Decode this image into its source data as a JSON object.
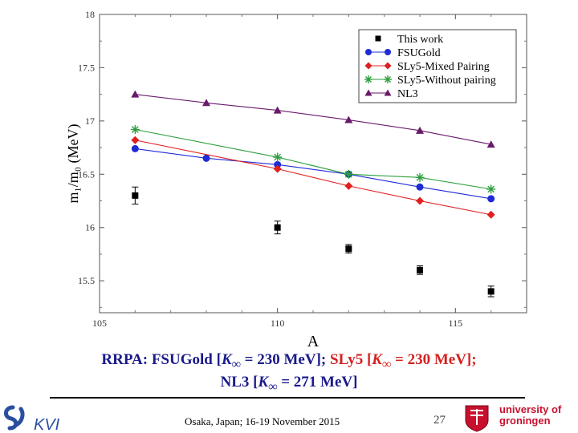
{
  "chart_data": {
    "type": "scatter",
    "xlabel": "A",
    "ylabel": "m₁/m₀ (MeV)",
    "xlim": [
      105,
      117
    ],
    "ylim": [
      15.2,
      18
    ],
    "x_ticks": [
      "105",
      "110",
      "115"
    ],
    "y_ticks": [
      "15.5",
      "16",
      "16.5",
      "17",
      "17.5",
      "18"
    ],
    "legend_position": "top-right",
    "series": [
      {
        "name": "This work",
        "style": "square-errorbar",
        "color": "#000000",
        "x": [
          106,
          110,
          112,
          114,
          116
        ],
        "y": [
          16.3,
          16.0,
          15.8,
          15.6,
          15.4
        ],
        "err": [
          0.08,
          0.06,
          0.04,
          0.04,
          0.05
        ]
      },
      {
        "name": "FSUGold",
        "style": "circle-line",
        "color": "#1f2bd6",
        "x": [
          106,
          108,
          110,
          112,
          114,
          116
        ],
        "y": [
          16.74,
          16.65,
          16.59,
          16.5,
          16.38,
          16.27
        ]
      },
      {
        "name": "SLy5-Mixed Pairing",
        "style": "diamond-line",
        "color": "#e02020",
        "x": [
          106,
          110,
          112,
          114,
          116
        ],
        "y": [
          16.82,
          16.55,
          16.39,
          16.25,
          16.12
        ]
      },
      {
        "name": "SLy5-Without pairing",
        "style": "star-line",
        "color": "#2e9e3e",
        "x": [
          106,
          110,
          112,
          114,
          116
        ],
        "y": [
          16.92,
          16.66,
          16.5,
          16.47,
          16.36
        ]
      },
      {
        "name": "NL3",
        "style": "triangle-line",
        "color": "#6a1a6a",
        "x": [
          106,
          108,
          110,
          112,
          114,
          116
        ],
        "y": [
          17.25,
          17.17,
          17.1,
          17.01,
          16.91,
          16.78
        ]
      }
    ]
  },
  "caption": {
    "line1_part1": "RRPA: FSUGold [",
    "k_symbol": "K",
    "inf_sub": "∞",
    "line1_part2": " = 230 MeV]; ",
    "line1_red_part1": "SLy5 [",
    "line1_red_part2": " = 230 MeV];",
    "line2_part1": "NL3 [",
    "line2_part2": " = 271 MeV]"
  },
  "footer": {
    "conference": "Osaka, Japan; 16-19 November 2015",
    "page_number": "27"
  },
  "logos": {
    "kvi_text": "KVI",
    "rug_line1": "university of",
    "rug_line2": "groningen"
  }
}
